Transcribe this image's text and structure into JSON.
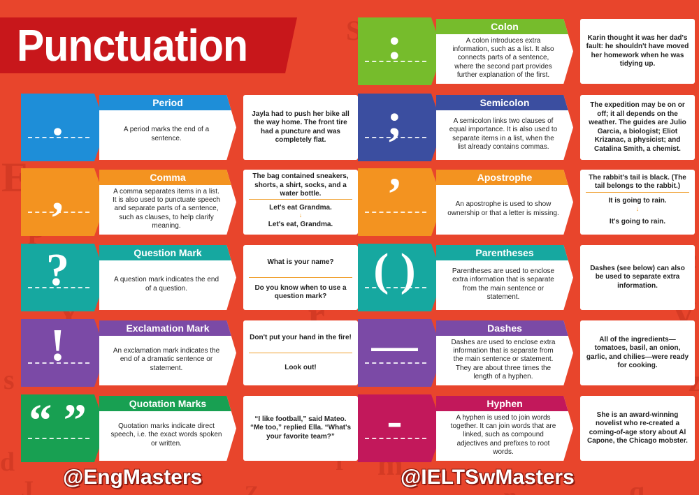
{
  "title": "Punctuation",
  "background_letters": [
    "E",
    "p",
    "Y",
    "s",
    "d",
    "k",
    "Q",
    "w",
    "X",
    "r",
    "g",
    "f",
    "S",
    "H",
    "a",
    "T",
    "c",
    "V",
    "z",
    "u",
    "q",
    "n",
    "w",
    "Z",
    "a",
    "m",
    "J",
    "y"
  ],
  "footer": {
    "left": "@EngMasters",
    "right": "@IELTSwMasters"
  },
  "left_rows": [
    {
      "name": "Period",
      "color": "#1e8ed8",
      "symbol": ".",
      "definition": "A period marks the end of a sentence.",
      "example": {
        "top": "Jayla had to push her bike all the way home. The front tire had a puncture and was completely flat.",
        "bottom": ""
      }
    },
    {
      "name": "Comma",
      "color": "#f39320",
      "symbol": ",",
      "definition": "A comma separates items in a list. It is also used to punctuate speech and separate parts of a sentence, such as clauses, to help clarify meaning.",
      "example": {
        "top": "The bag contained sneakers, shorts, a shirt, socks, and a water bottle.",
        "middle": "Let's eat Grandma.",
        "bottom": "Let's eat, Grandma."
      }
    },
    {
      "name": "Question Mark",
      "color": "#16a8a0",
      "symbol": "?",
      "definition": "A question mark indicates the end of a question.",
      "example": {
        "top": "What is your name?",
        "bottom": "Do you know when to use a question mark?"
      }
    },
    {
      "name": "Exclamation Mark",
      "color": "#7b4aa6",
      "symbol": "!",
      "definition": "An exclamation mark indicates the end of a dramatic sentence or statement.",
      "example": {
        "top": "Don't put your hand in the fire!",
        "bottom": "Look out!"
      }
    },
    {
      "name": "Quotation Marks",
      "color": "#18a052",
      "symbol": "“ ”",
      "definition": "Quotation marks indicate direct speech, i.e. the exact words spoken or written.",
      "example": {
        "top": "“I like football,” said Mateo. “Me too,” replied Ella. “What's your favorite team?”",
        "bottom": ""
      }
    }
  ],
  "right_rows": [
    {
      "name": "Colon",
      "color": "#76bc2c",
      "symbol": ":",
      "definition": "A colon introduces extra information, such as a list. It also connects parts of a sentence, where the second part provides further explanation of the first.",
      "example": {
        "top": "Karin thought it was her dad's fault: he shouldn't have moved her homework when he was tidying up.",
        "bottom": ""
      }
    },
    {
      "name": "Semicolon",
      "color": "#3b4ea0",
      "symbol": ";",
      "definition": "A semicolon links two clauses of equal importance. It is also used to separate items in a list, when the list already contains commas.",
      "example": {
        "top": "The expedition may be on or off; it all depends on the weather. The guides are Julio Garcia, a biologist; Eliot Krizanac, a physicist; and Catalina Smith, a chemist.",
        "bottom": ""
      }
    },
    {
      "name": "Apostrophe",
      "color": "#f39320",
      "symbol": "’",
      "definition": "An apostrophe is used to show ownership or that a letter is missing.",
      "example": {
        "top": "The rabbit's tail is black. (The tail belongs to the rabbit.)",
        "middle": "It is going to rain.",
        "bottom": "It's going to rain."
      }
    },
    {
      "name": "Parentheses",
      "color": "#16a8a0",
      "symbol": "( )",
      "definition": "Parentheses are used to enclose extra information that is separate from the main sentence or statement.",
      "example": {
        "top": "Dashes (see below) can also be used to separate extra information.",
        "bottom": ""
      }
    },
    {
      "name": "Dashes",
      "color": "#7b4aa6",
      "symbol": "—",
      "definition": "Dashes are used to enclose extra information that is separate from the main sentence or statement. They are about three times the length of a hyphen.",
      "example": {
        "top": "All of the ingredients—tomatoes, basil, an onion, garlic, and chilies—were ready for cooking.",
        "bottom": ""
      }
    },
    {
      "name": "Hyphen",
      "color": "#c2185b",
      "symbol": "-",
      "definition": "A hyphen is used to join words together. It can join words that are linked, such as compound adjectives and prefixes to root words.",
      "example": {
        "top": "She is an award-winning novelist who re-created a coming-of-age story about Al Capone, the Chicago mobster.",
        "bottom": ""
      }
    }
  ]
}
